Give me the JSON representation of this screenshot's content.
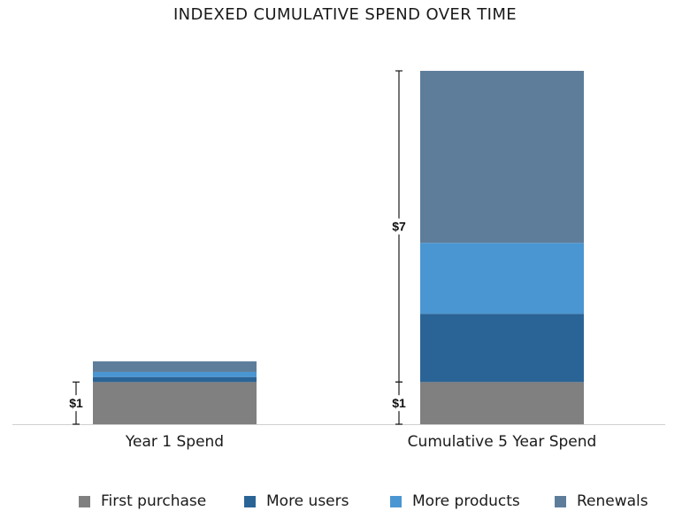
{
  "chart_data": {
    "type": "bar",
    "stacked": true,
    "title": "INDEXED CUMULATIVE SPEND OVER TIME",
    "xlabel": "",
    "ylabel": "",
    "categories": [
      "Year 1 Spend",
      "Cumulative 5 Year Spend"
    ],
    "series": [
      {
        "name": "First purchase",
        "color": "#808080",
        "values": [
          1,
          1
        ]
      },
      {
        "name": "More users",
        "color": "#2a6496",
        "values": [
          0.12,
          1.62
        ]
      },
      {
        "name": "More products",
        "color": "#4a96d2",
        "values": [
          0.12,
          1.68
        ]
      },
      {
        "name": "Renewals",
        "color": "#5e7d9b",
        "values": [
          0.25,
          4.08
        ]
      }
    ],
    "ylim": [
      0,
      8.38
    ],
    "grid": false,
    "legend_position": "bottom",
    "annotations": [
      {
        "category": "Year 1 Spend",
        "label": "$1",
        "from": 0,
        "to": 1
      },
      {
        "category": "Cumulative 5 Year Spend",
        "label": "$1",
        "from": 0,
        "to": 1
      },
      {
        "category": "Cumulative 5 Year Spend",
        "label": "$7",
        "from": 1,
        "to": 8.38
      }
    ]
  }
}
